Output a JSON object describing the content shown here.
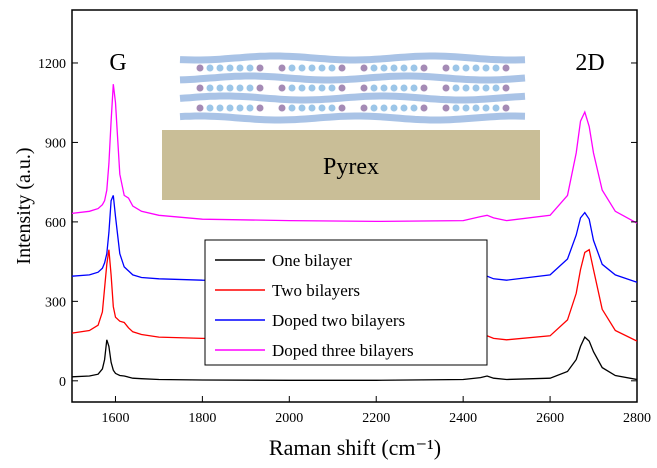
{
  "chart_data": {
    "type": "line",
    "xlabel": "Raman shift (cm⁻¹)",
    "ylabel": "Intensity (a.u.)",
    "annotations": [
      "G",
      "2D",
      "Pyrex"
    ],
    "x": [
      1500,
      1540,
      1560,
      1570,
      1575,
      1580,
      1585,
      1590,
      1595,
      1600,
      1610,
      1620,
      1630,
      1640,
      1660,
      1700,
      1800,
      2000,
      2200,
      2400,
      2440,
      2455,
      2470,
      2500,
      2600,
      2640,
      2660,
      2670,
      2680,
      2690,
      2700,
      2720,
      2750,
      2800
    ],
    "series": [
      {
        "name": "One bilayer",
        "color": "#000000",
        "values": [
          15,
          18,
          25,
          45,
          80,
          155,
          130,
          70,
          40,
          28,
          20,
          18,
          14,
          10,
          8,
          5,
          3,
          2,
          2,
          5,
          12,
          18,
          10,
          5,
          10,
          35,
          80,
          130,
          165,
          150,
          110,
          50,
          20,
          5
        ]
      },
      {
        "name": "Two bilayers",
        "color": "#ff0000",
        "values": [
          180,
          190,
          210,
          260,
          350,
          440,
          495,
          400,
          280,
          240,
          225,
          220,
          200,
          185,
          175,
          165,
          160,
          155,
          155,
          160,
          165,
          170,
          160,
          155,
          170,
          230,
          330,
          420,
          485,
          495,
          420,
          270,
          190,
          150
        ]
      },
      {
        "name": "Doped two bilayers",
        "color": "#0000ff",
        "values": [
          395,
          400,
          410,
          425,
          445,
          480,
          560,
          680,
          700,
          620,
          480,
          430,
          415,
          400,
          390,
          385,
          380,
          378,
          378,
          382,
          390,
          395,
          385,
          380,
          400,
          460,
          550,
          615,
          635,
          610,
          530,
          440,
          400,
          372
        ]
      },
      {
        "name": "Doped three bilayers",
        "color": "#ff00ff",
        "values": [
          632,
          640,
          650,
          665,
          680,
          720,
          820,
          980,
          1120,
          1050,
          780,
          700,
          690,
          660,
          640,
          625,
          610,
          605,
          602,
          605,
          620,
          625,
          615,
          605,
          625,
          700,
          860,
          980,
          1015,
          960,
          860,
          720,
          640,
          595
        ]
      }
    ],
    "xlim": [
      1500,
      2800
    ],
    "xticks": [
      1600,
      1800,
      2000,
      2200,
      2400,
      2600,
      2800
    ],
    "ylim": [
      -80,
      1400
    ],
    "yticks": [
      0,
      300,
      600,
      900,
      1200
    ]
  }
}
